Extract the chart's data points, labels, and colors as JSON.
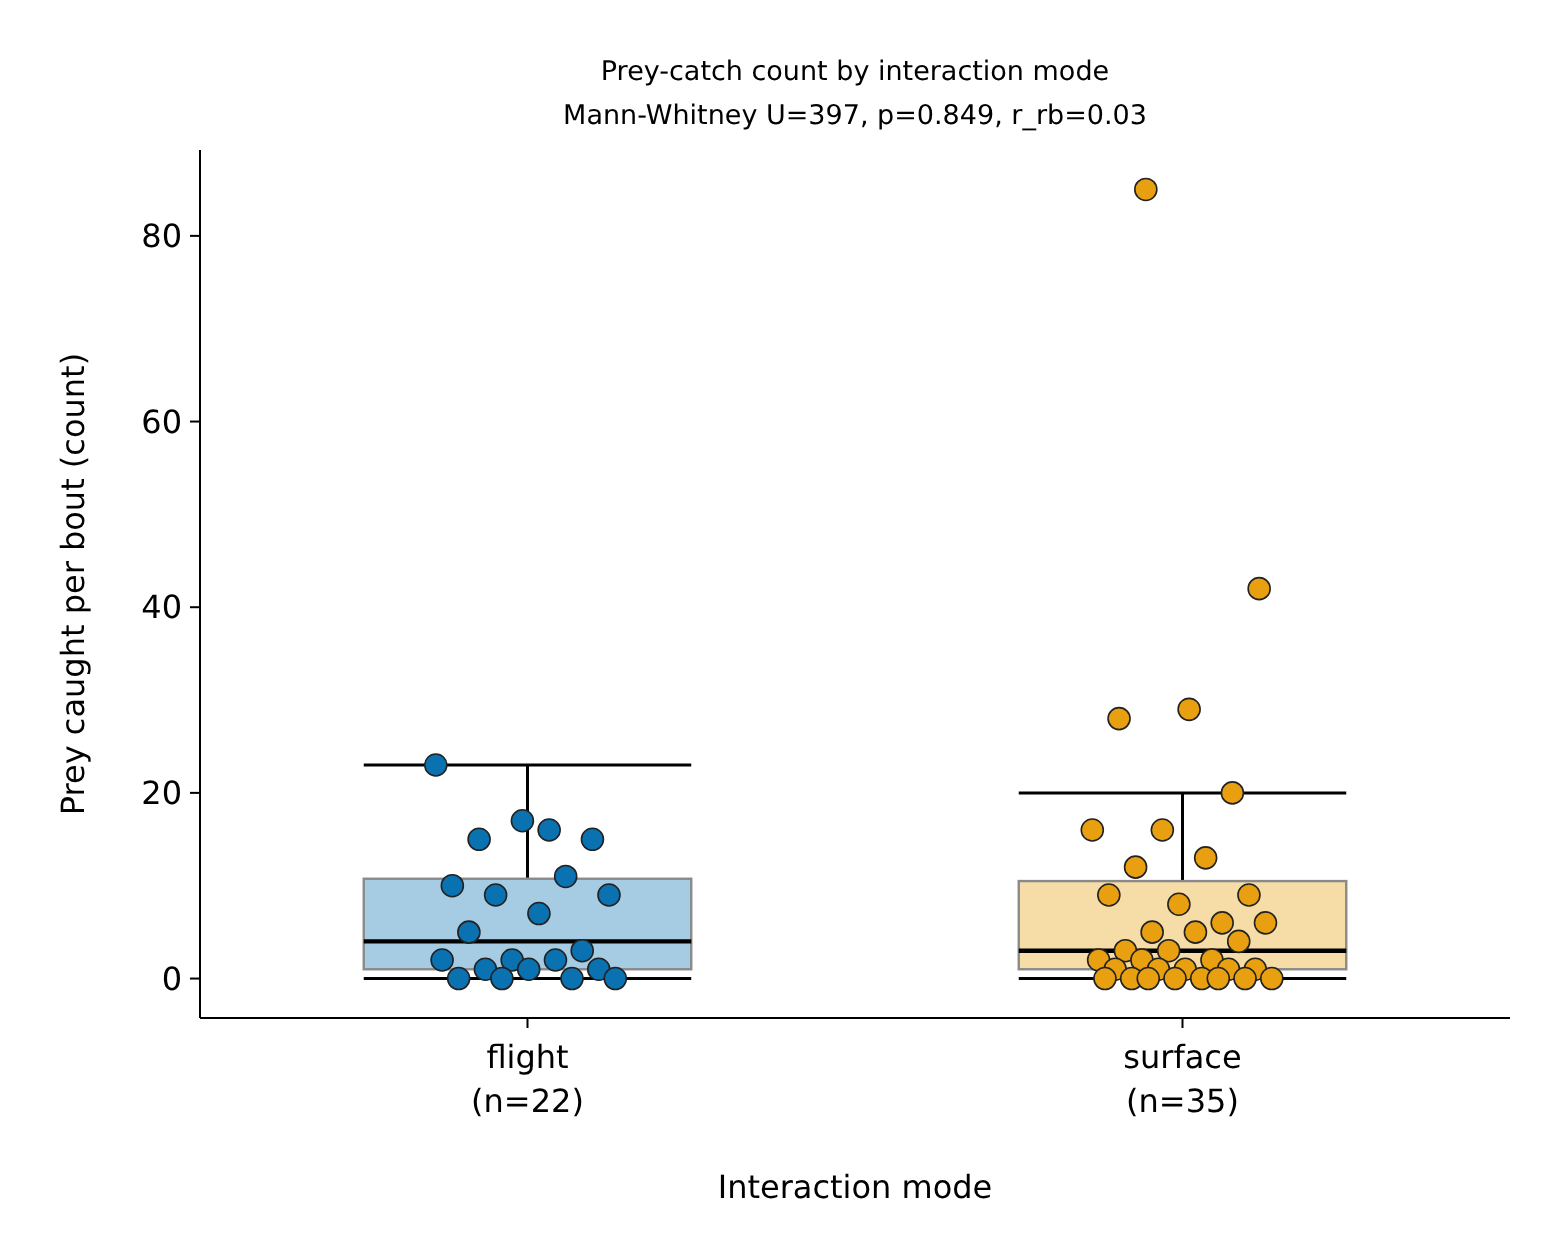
{
  "chart_data": {
    "type": "box",
    "title": "Prey-catch count by interaction mode",
    "subtitle": "Mann-Whitney U=397, p=0.849, r_rb=0.03",
    "xlabel": "Interaction mode",
    "ylabel": "Prey caught per bout (count)",
    "categories": [
      "flight\n(n=22)",
      "surface\n(n=35)"
    ],
    "colors": [
      "#a6cce3",
      "#f6dca6"
    ],
    "boxes": [
      {
        "low": 0,
        "q1": 1,
        "median": 4,
        "q3": 10.75,
        "high": 23
      },
      {
        "low": 0,
        "q1": 1,
        "median": 3,
        "q3": 10.5,
        "high": 20
      }
    ],
    "series": [
      {
        "type": "scatter",
        "marker": "circle",
        "color": "#0a72b0",
        "x": [
          "flight\n(n=22)",
          "flight\n(n=22)",
          "flight\n(n=22)",
          "flight\n(n=22)",
          "flight\n(n=22)",
          "flight\n(n=22)",
          "flight\n(n=22)",
          "flight\n(n=22)",
          "flight\n(n=22)",
          "flight\n(n=22)",
          "flight\n(n=22)",
          "flight\n(n=22)",
          "flight\n(n=22)",
          "flight\n(n=22)",
          "flight\n(n=22)",
          "flight\n(n=22)",
          "flight\n(n=22)",
          "flight\n(n=22)",
          "flight\n(n=22)",
          "flight\n(n=22)",
          "flight\n(n=22)",
          "flight\n(n=22)"
        ],
        "values": [
          23,
          16,
          15,
          15,
          17,
          10,
          11,
          9,
          9,
          7,
          5,
          3,
          2,
          2,
          2,
          1,
          1,
          1,
          0,
          0,
          0,
          0
        ]
      },
      {
        "type": "scatter",
        "marker": "circle",
        "color": "#e8a010",
        "x": [
          "surface\n(n=35)",
          "surface\n(n=35)",
          "surface\n(n=35)",
          "surface\n(n=35)",
          "surface\n(n=35)",
          "surface\n(n=35)",
          "surface\n(n=35)",
          "surface\n(n=35)",
          "surface\n(n=35)",
          "surface\n(n=35)",
          "surface\n(n=35)",
          "surface\n(n=35)",
          "surface\n(n=35)",
          "surface\n(n=35)",
          "surface\n(n=35)",
          "surface\n(n=35)",
          "surface\n(n=35)",
          "surface\n(n=35)",
          "surface\n(n=35)",
          "surface\n(n=35)",
          "surface\n(n=35)",
          "surface\n(n=35)",
          "surface\n(n=35)",
          "surface\n(n=35)",
          "surface\n(n=35)",
          "surface\n(n=35)",
          "surface\n(n=35)",
          "surface\n(n=35)",
          "surface\n(n=35)",
          "surface\n(n=35)",
          "surface\n(n=35)",
          "surface\n(n=35)",
          "surface\n(n=35)",
          "surface\n(n=35)",
          "surface\n(n=35)"
        ],
        "values": [
          85,
          42,
          29,
          28,
          20,
          16,
          16,
          13,
          12,
          9,
          8,
          9,
          6,
          5,
          6,
          5,
          3,
          4,
          3,
          2,
          2,
          2,
          1,
          1,
          1,
          1,
          1,
          0,
          0,
          0,
          0,
          0,
          0,
          0,
          0
        ]
      }
    ],
    "ylim": [
      -4.25,
      89.25
    ],
    "yticks": [
      0,
      20,
      40,
      60,
      80
    ]
  }
}
